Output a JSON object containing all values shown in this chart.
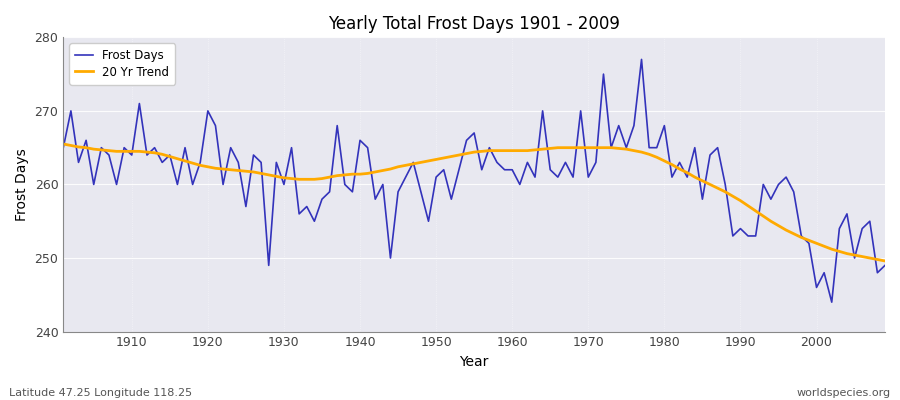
{
  "title": "Yearly Total Frost Days 1901 - 2009",
  "xlabel": "Year",
  "ylabel": "Frost Days",
  "bottom_left_label": "Latitude 47.25 Longitude 118.25",
  "bottom_right_label": "worldspecies.org",
  "ylim": [
    240,
    280
  ],
  "xlim": [
    1901,
    2009
  ],
  "legend_entries": [
    "Frost Days",
    "20 Yr Trend"
  ],
  "frost_color": "#3333bb",
  "trend_color": "#ffaa00",
  "background_color": "#e8e8f0",
  "years": [
    1901,
    1902,
    1903,
    1904,
    1905,
    1906,
    1907,
    1908,
    1909,
    1910,
    1911,
    1912,
    1913,
    1914,
    1915,
    1916,
    1917,
    1918,
    1919,
    1920,
    1921,
    1922,
    1923,
    1924,
    1925,
    1926,
    1927,
    1928,
    1929,
    1930,
    1931,
    1932,
    1933,
    1934,
    1935,
    1936,
    1937,
    1938,
    1939,
    1940,
    1941,
    1942,
    1943,
    1944,
    1945,
    1946,
    1947,
    1948,
    1949,
    1950,
    1951,
    1952,
    1953,
    1954,
    1955,
    1956,
    1957,
    1958,
    1959,
    1960,
    1961,
    1962,
    1963,
    1964,
    1965,
    1966,
    1967,
    1968,
    1969,
    1970,
    1971,
    1972,
    1973,
    1974,
    1975,
    1976,
    1977,
    1978,
    1979,
    1980,
    1981,
    1982,
    1983,
    1984,
    1985,
    1986,
    1987,
    1988,
    1989,
    1990,
    1991,
    1992,
    1993,
    1994,
    1995,
    1996,
    1997,
    1998,
    1999,
    2000,
    2001,
    2002,
    2003,
    2004,
    2005,
    2006,
    2007,
    2008,
    2009
  ],
  "frost_days": [
    265,
    270,
    263,
    266,
    260,
    265,
    264,
    260,
    265,
    264,
    271,
    264,
    265,
    263,
    264,
    260,
    265,
    260,
    263,
    270,
    268,
    260,
    265,
    263,
    257,
    264,
    263,
    249,
    263,
    260,
    265,
    256,
    257,
    255,
    258,
    259,
    268,
    260,
    259,
    266,
    265,
    258,
    260,
    250,
    259,
    261,
    263,
    259,
    255,
    261,
    262,
    258,
    262,
    266,
    267,
    262,
    265,
    263,
    262,
    262,
    260,
    263,
    261,
    270,
    262,
    261,
    263,
    261,
    270,
    261,
    263,
    275,
    265,
    268,
    265,
    268,
    277,
    265,
    265,
    268,
    261,
    263,
    261,
    265,
    258,
    264,
    265,
    260,
    253,
    254,
    253,
    253,
    260,
    258,
    260,
    261,
    259,
    253,
    252,
    246,
    248,
    244,
    254,
    256,
    250,
    254,
    255,
    248,
    249
  ],
  "trend_years": [
    1901,
    1902,
    1903,
    1904,
    1905,
    1906,
    1907,
    1908,
    1909,
    1910,
    1911,
    1912,
    1913,
    1914,
    1915,
    1916,
    1917,
    1918,
    1919,
    1920,
    1921,
    1922,
    1923,
    1924,
    1925,
    1926,
    1927,
    1928,
    1929,
    1930,
    1931,
    1932,
    1933,
    1934,
    1935,
    1936,
    1937,
    1938,
    1939,
    1940,
    1941,
    1942,
    1943,
    1944,
    1945,
    1946,
    1947,
    1948,
    1949,
    1950,
    1951,
    1952,
    1953,
    1954,
    1955,
    1956,
    1957,
    1958,
    1959,
    1960,
    1961,
    1962,
    1963,
    1964,
    1965,
    1966,
    1967,
    1968,
    1969,
    1970,
    1971,
    1972,
    1973,
    1974,
    1975,
    1976,
    1977,
    1978,
    1979,
    1980,
    1981,
    1982,
    1983,
    1984,
    1985,
    1986,
    1987,
    1988,
    1989,
    1990,
    1991,
    1992,
    1993,
    1994,
    1995,
    1996,
    1997,
    1998,
    1999,
    2000,
    2001,
    2002,
    2003,
    2004,
    2005,
    2006,
    2007,
    2008,
    2009
  ],
  "trend_values": [
    265.5,
    265.3,
    265.1,
    265.0,
    264.8,
    264.7,
    264.6,
    264.5,
    264.5,
    264.5,
    264.5,
    264.4,
    264.3,
    264.1,
    263.8,
    263.5,
    263.2,
    262.9,
    262.6,
    262.4,
    262.2,
    262.1,
    262.0,
    261.9,
    261.8,
    261.7,
    261.5,
    261.3,
    261.1,
    260.9,
    260.8,
    260.7,
    260.7,
    260.7,
    260.8,
    261.0,
    261.2,
    261.3,
    261.4,
    261.4,
    261.5,
    261.7,
    261.9,
    262.1,
    262.4,
    262.6,
    262.8,
    263.0,
    263.2,
    263.4,
    263.6,
    263.8,
    264.0,
    264.2,
    264.4,
    264.5,
    264.6,
    264.6,
    264.6,
    264.6,
    264.6,
    264.6,
    264.7,
    264.8,
    264.9,
    265.0,
    265.0,
    265.0,
    265.0,
    265.0,
    265.0,
    265.0,
    265.0,
    264.9,
    264.8,
    264.6,
    264.4,
    264.1,
    263.7,
    263.2,
    262.7,
    262.1,
    261.6,
    261.0,
    260.5,
    260.0,
    259.5,
    259.0,
    258.4,
    257.8,
    257.1,
    256.4,
    255.7,
    255.0,
    254.4,
    253.8,
    253.3,
    252.8,
    252.4,
    252.0,
    251.6,
    251.2,
    250.9,
    250.6,
    250.4,
    250.2,
    250.0,
    249.8,
    249.6
  ]
}
